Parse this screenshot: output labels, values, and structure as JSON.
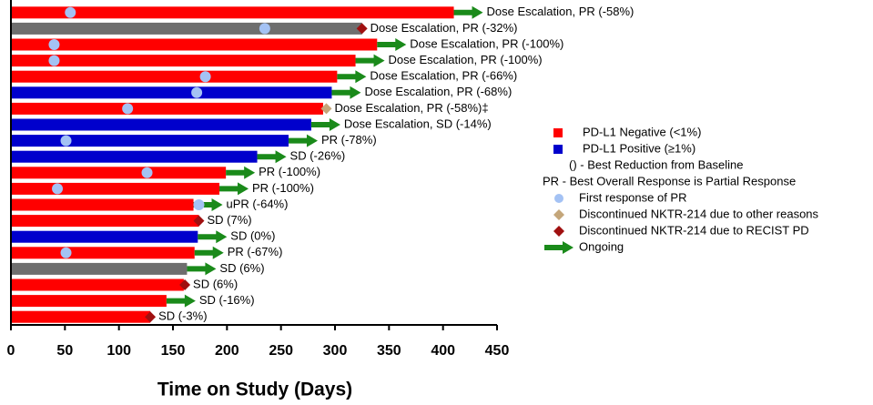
{
  "chart_data": {
    "type": "swimmer",
    "xlabel": "Time on Study (Days)",
    "xlim": [
      0,
      450
    ],
    "xticks": [
      0,
      50,
      100,
      150,
      200,
      250,
      300,
      350,
      400,
      450
    ],
    "rows": [
      {
        "days": 410,
        "color": "#ff0000",
        "label": "Dose Escalation, PR (-58%)",
        "first_response": 55,
        "ongoing": true
      },
      {
        "days": 325,
        "color": "#6e6e6e",
        "label": "Dose Escalation, PR (-32%)",
        "first_response": 235,
        "discontinued_pd": 325
      },
      {
        "days": 339,
        "color": "#ff0000",
        "label": "Dose Escalation, PR (-100%)",
        "first_response": 40,
        "ongoing": true
      },
      {
        "days": 319,
        "color": "#ff0000",
        "label": "Dose Escalation, PR (-100%)",
        "first_response": 40,
        "ongoing": true
      },
      {
        "days": 302,
        "color": "#ff0000",
        "label": "Dose Escalation, PR (-66%)",
        "first_response": 180,
        "ongoing": true
      },
      {
        "days": 297,
        "color": "#0000cc",
        "label": "Dose Escalation, PR (-68%)",
        "first_response": 172,
        "ongoing": true
      },
      {
        "days": 289,
        "color": "#ff0000",
        "label": "Dose Escalation, PR (-58%)‡",
        "first_response": 108,
        "discontinued_other": 292
      },
      {
        "days": 278,
        "color": "#0000cc",
        "label": "Dose Escalation, SD (-14%)",
        "ongoing": true
      },
      {
        "days": 257,
        "color": "#0000cc",
        "label": "PR (-78%)",
        "first_response": 51,
        "ongoing": true
      },
      {
        "days": 228,
        "color": "#0000cc",
        "label": "SD (-26%)",
        "ongoing": true
      },
      {
        "days": 199,
        "color": "#ff0000",
        "label": "PR (-100%)",
        "first_response": 126,
        "ongoing": true
      },
      {
        "days": 193,
        "color": "#ff0000",
        "label": "PR (-100%)",
        "first_response": 43,
        "ongoing": true
      },
      {
        "days": 169,
        "color": "#ff0000",
        "label": "uPR (-64%)",
        "first_response": 174,
        "ongoing": true
      },
      {
        "days": 174,
        "color": "#ff0000",
        "label": "SD (7%)",
        "discontinued_pd": 174
      },
      {
        "days": 173,
        "color": "#0000cc",
        "label": "SD (0%)",
        "ongoing": true
      },
      {
        "days": 170,
        "color": "#ff0000",
        "label": "PR (-67%)",
        "first_response": 51,
        "ongoing": true
      },
      {
        "days": 163,
        "color": "#6e6e6e",
        "label": "SD (6%)",
        "ongoing": true
      },
      {
        "days": 160,
        "color": "#ff0000",
        "label": "SD (6%)",
        "discontinued_pd": 161
      },
      {
        "days": 144,
        "color": "#ff0000",
        "label": "SD (-16%)",
        "ongoing": true
      },
      {
        "days": 129,
        "color": "#ff0000",
        "label": "SD (-3%)",
        "discontinued_pd": 129
      }
    ],
    "legend": [
      {
        "label": "PD-L1 Negative (<1%)",
        "symbol": "square",
        "color": "#ff0000"
      },
      {
        "label": "PD-L1 Positive (≥1%)",
        "symbol": "square",
        "color": "#0000cc"
      },
      {
        "label": "() - Best Reduction from Baseline",
        "symbol": "none"
      },
      {
        "label": "PR - Best Overall Response is Partial Response",
        "symbol": "none"
      },
      {
        "label": "First response of PR",
        "symbol": "circle",
        "color": "#a4c2f4"
      },
      {
        "label": "Discontinued NKTR-214 due to other reasons",
        "symbol": "diamond",
        "color": "#c4a67a"
      },
      {
        "label": "Discontinued NKTR-214 due to RECIST PD",
        "symbol": "diamond",
        "color": "#a01010"
      },
      {
        "label": "Ongoing",
        "symbol": "arrow",
        "color": "#1a8a1a"
      }
    ],
    "first_response_color": "#a4c2f4",
    "discontinued_other_color": "#c4a67a",
    "discontinued_pd_color": "#a01010",
    "ongoing_color": "#1a8a1a"
  }
}
